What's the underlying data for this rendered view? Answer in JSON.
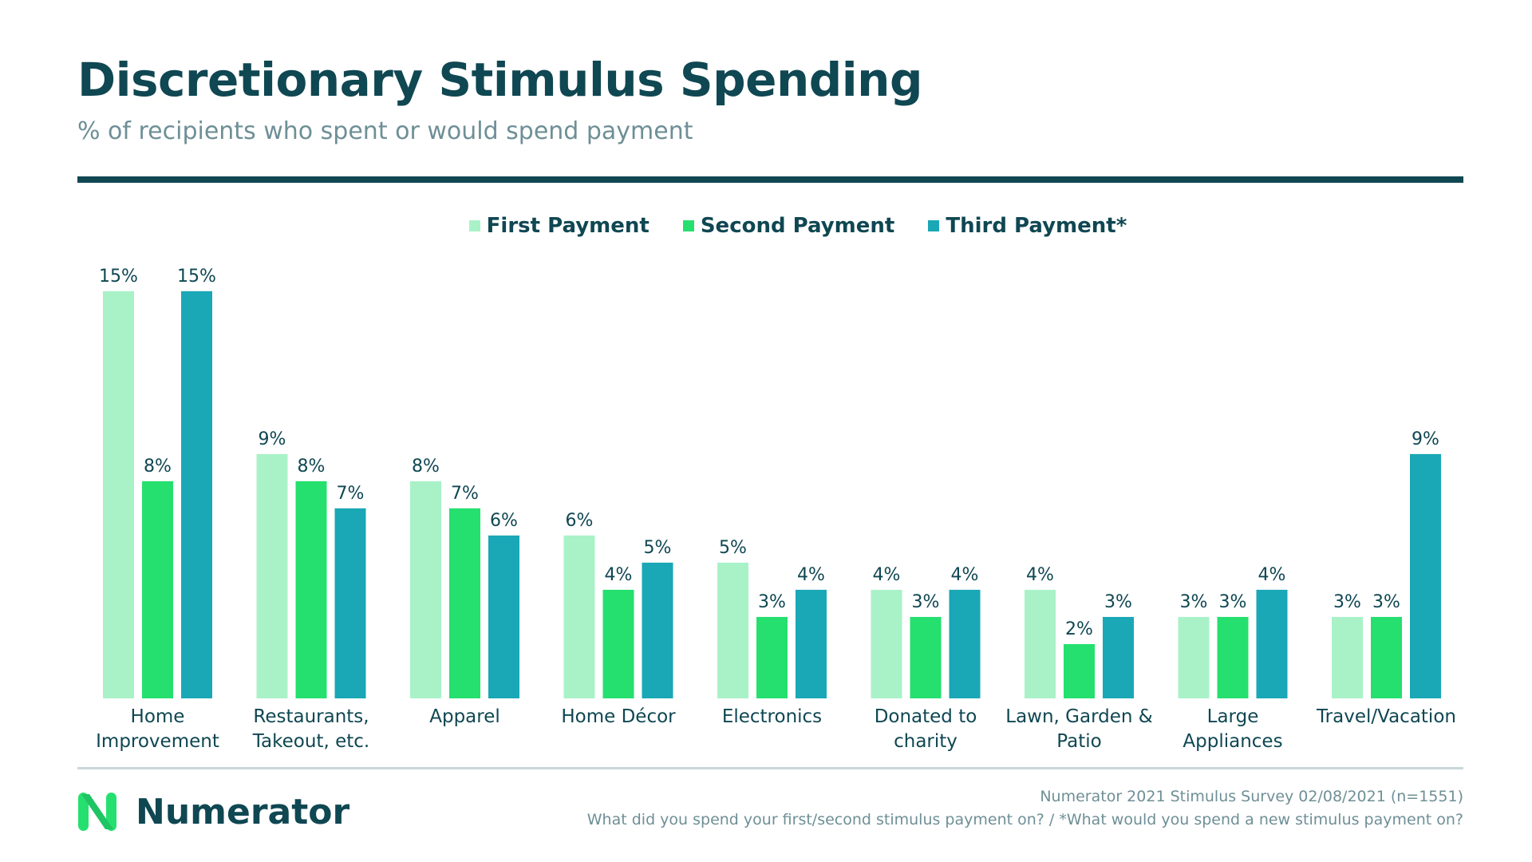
{
  "header": {
    "title": "Discretionary Stimulus Spending",
    "subtitle": "% of recipients who spent or would spend payment"
  },
  "colors": {
    "title": "#0f4752",
    "first": "#a9f2c8",
    "second": "#25e06f",
    "third": "#1aa7b6",
    "label": "#0f4752"
  },
  "chart_data": {
    "type": "bar",
    "categories": [
      [
        "Home",
        "Improvement"
      ],
      [
        "Restaurants,",
        "Takeout, etc."
      ],
      [
        "Apparel"
      ],
      [
        "Home Décor"
      ],
      [
        "Electronics"
      ],
      [
        "Donated to",
        "charity"
      ],
      [
        "Lawn, Garden &",
        "Patio"
      ],
      [
        "Large",
        "Appliances"
      ],
      [
        "Travel/Vacation"
      ]
    ],
    "series": [
      {
        "name": "First Payment",
        "values": [
          15,
          9,
          8,
          6,
          5,
          4,
          4,
          3,
          3
        ],
        "labels": [
          "15%",
          "9%",
          "8%",
          "6%",
          "5%",
          "4%",
          "4%",
          "3%",
          "3%"
        ]
      },
      {
        "name": "Second Payment",
        "values": [
          8,
          8,
          7,
          4,
          3,
          3,
          2,
          3,
          3
        ],
        "labels": [
          "8%",
          "8%",
          "7%",
          "4%",
          "3%",
          "3%",
          "2%",
          "3%",
          "3%"
        ]
      },
      {
        "name": "Third Payment*",
        "values": [
          15,
          7,
          6,
          5,
          4,
          4,
          3,
          4,
          9
        ],
        "labels": [
          "15%",
          "7%",
          "6%",
          "5%",
          "4%",
          "4%",
          "3%",
          "4%",
          "9%"
        ]
      }
    ],
    "legend_position": "top-center",
    "grid": false,
    "ylim": [
      0,
      15.2
    ]
  },
  "footer": {
    "logo_text": "Numerator",
    "source_line1": "Numerator 2021 Stimulus Survey 02/08/2021 (n=1551)",
    "source_line2": "What did you spend your first/second stimulus payment on? / *What would you spend a new stimulus payment on?"
  }
}
